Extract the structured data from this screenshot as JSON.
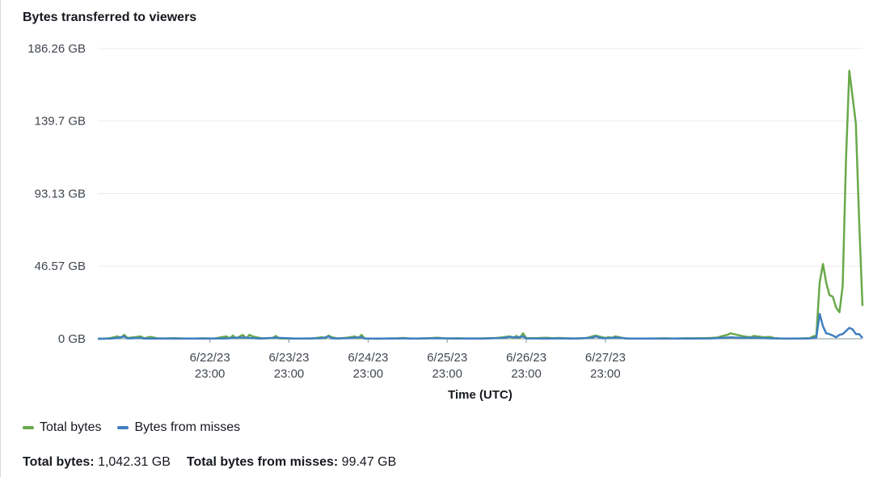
{
  "panel": {
    "title": "Bytes transferred to viewers"
  },
  "chart_data": {
    "type": "line",
    "title": "Bytes transferred to viewers",
    "xlabel": "Time (UTC)",
    "ylabel": "",
    "y_unit": "GB",
    "ylim": [
      0,
      186.26
    ],
    "y_ticks": [
      0,
      46.57,
      93.13,
      139.7,
      186.26
    ],
    "y_tick_labels": [
      "0 GB",
      "46.57 GB",
      "93.13 GB",
      "139.7 GB",
      "186.26 GB"
    ],
    "x_start": "2023-06-21T13:00",
    "x_end": "2023-06-28T13:00",
    "x_ticks": [
      "2023-06-22T23:00",
      "2023-06-23T23:00",
      "2023-06-24T23:00",
      "2023-06-25T23:00",
      "2023-06-26T23:00",
      "2023-06-27T23:00"
    ],
    "x_tick_labels": [
      [
        "6/22/23",
        "23:00"
      ],
      [
        "6/23/23",
        "23:00"
      ],
      [
        "6/24/23",
        "23:00"
      ],
      [
        "6/25/23",
        "23:00"
      ],
      [
        "6/26/23",
        "23:00"
      ],
      [
        "6/27/23",
        "23:00"
      ]
    ],
    "grid": true,
    "legend_position": "bottom-left",
    "series": [
      {
        "name": "Total bytes",
        "color": "#69a94a",
        "points": [
          [
            "2023-06-21T13:00",
            0
          ],
          [
            "2023-06-21T15:00",
            0
          ],
          [
            "2023-06-21T17:00",
            0.5
          ],
          [
            "2023-06-21T19:00",
            1.5
          ],
          [
            "2023-06-21T20:00",
            0.5
          ],
          [
            "2023-06-21T21:00",
            2.5
          ],
          [
            "2023-06-21T22:00",
            0.5
          ],
          [
            "2023-06-22T00:00",
            1
          ],
          [
            "2023-06-22T02:00",
            1.5
          ],
          [
            "2023-06-22T03:00",
            0.3
          ],
          [
            "2023-06-22T05:00",
            1.2
          ],
          [
            "2023-06-22T07:00",
            0.3
          ],
          [
            "2023-06-22T09:00",
            0.2
          ],
          [
            "2023-06-22T12:00",
            0.4
          ],
          [
            "2023-06-22T15:00",
            0.2
          ],
          [
            "2023-06-22T18:00",
            0.1
          ],
          [
            "2023-06-22T21:00",
            0.3
          ],
          [
            "2023-06-23T00:00",
            0.1
          ],
          [
            "2023-06-23T04:00",
            1.5
          ],
          [
            "2023-06-23T05:00",
            0.3
          ],
          [
            "2023-06-23T06:00",
            2
          ],
          [
            "2023-06-23T07:00",
            0.3
          ],
          [
            "2023-06-23T09:00",
            2.5
          ],
          [
            "2023-06-23T10:00",
            0.3
          ],
          [
            "2023-06-23T11:00",
            2.5
          ],
          [
            "2023-06-23T12:00",
            1.5
          ],
          [
            "2023-06-23T13:00",
            1
          ],
          [
            "2023-06-23T15:00",
            0.2
          ],
          [
            "2023-06-23T18:00",
            0.4
          ],
          [
            "2023-06-23T19:00",
            1.8
          ],
          [
            "2023-06-23T20:00",
            0.2
          ],
          [
            "2023-06-23T23:00",
            0.1
          ],
          [
            "2023-06-24T03:00",
            0.1
          ],
          [
            "2023-06-24T06:00",
            0.1
          ],
          [
            "2023-06-24T09:00",
            1
          ],
          [
            "2023-06-24T10:00",
            0.2
          ],
          [
            "2023-06-24T11:00",
            2
          ],
          [
            "2023-06-24T12:00",
            1
          ],
          [
            "2023-06-24T14:00",
            0.1
          ],
          [
            "2023-06-24T17:00",
            0.8
          ],
          [
            "2023-06-24T19:00",
            1.5
          ],
          [
            "2023-06-24T20:00",
            0.3
          ],
          [
            "2023-06-24T21:00",
            2.5
          ],
          [
            "2023-06-24T22:00",
            0.1
          ],
          [
            "2023-06-25T02:00",
            0
          ],
          [
            "2023-06-25T05:00",
            0.2
          ],
          [
            "2023-06-25T08:00",
            0.3
          ],
          [
            "2023-06-25T10:00",
            0.5
          ],
          [
            "2023-06-25T11:00",
            0.2
          ],
          [
            "2023-06-25T14:00",
            0.1
          ],
          [
            "2023-06-25T17:00",
            0.3
          ],
          [
            "2023-06-25T20:00",
            0.6
          ],
          [
            "2023-06-25T23:00",
            0.1
          ],
          [
            "2023-06-26T02:00",
            0.3
          ],
          [
            "2023-06-26T05:00",
            0.2
          ],
          [
            "2023-06-26T08:00",
            0.2
          ],
          [
            "2023-06-26T11:00",
            0.3
          ],
          [
            "2023-06-26T14:00",
            0.5
          ],
          [
            "2023-06-26T16:00",
            1
          ],
          [
            "2023-06-26T18:00",
            1.5
          ],
          [
            "2023-06-26T19:00",
            0.5
          ],
          [
            "2023-06-26T20:00",
            1.8
          ],
          [
            "2023-06-26T21:00",
            0.3
          ],
          [
            "2023-06-26T22:00",
            3.5
          ],
          [
            "2023-06-26T23:00",
            0.4
          ],
          [
            "2023-06-27T02:00",
            0.4
          ],
          [
            "2023-06-27T05:00",
            0.6
          ],
          [
            "2023-06-27T07:00",
            0.4
          ],
          [
            "2023-06-27T09:00",
            0.5
          ],
          [
            "2023-06-27T11:00",
            0.3
          ],
          [
            "2023-06-27T14:00",
            0.2
          ],
          [
            "2023-06-27T17:00",
            0.3
          ],
          [
            "2023-06-27T19:00",
            1.5
          ],
          [
            "2023-06-27T20:00",
            2
          ],
          [
            "2023-06-27T22:00",
            1
          ],
          [
            "2023-06-27T23:00",
            0.5
          ],
          [
            "2023-06-28T00:00",
            1
          ],
          [
            "2023-06-28T01:00",
            0.6
          ],
          [
            "2023-06-28T02:00",
            1.5
          ],
          [
            "2023-06-28T05:00",
            0.2
          ],
          [
            "2023-06-28T08:00",
            0.1
          ],
          [
            "2023-06-28T11:00",
            0.1
          ],
          [
            "2023-06-28T14:00",
            0.2
          ],
          [
            "2023-06-28T17:00",
            0.3
          ],
          [
            "2023-06-28T20:00",
            0.1
          ],
          [
            "2023-06-28T23:00",
            0.3
          ],
          [
            "2023-06-29T02:00",
            0.3
          ],
          [
            "2023-06-29T05:00",
            0.4
          ],
          [
            "2023-06-29T07:00",
            0.5
          ],
          [
            "2023-06-29T09:00",
            0.8
          ],
          [
            "2023-06-29T11:00",
            2
          ],
          [
            "2023-06-29T12:00",
            2.5
          ],
          [
            "2023-06-29T13:00",
            3.5
          ],
          [
            "2023-06-29T15:00",
            2.5
          ],
          [
            "2023-06-29T17:00",
            1.5
          ],
          [
            "2023-06-29T19:00",
            1
          ],
          [
            "2023-06-29T20:00",
            1.8
          ],
          [
            "2023-06-29T21:00",
            1.5
          ],
          [
            "2023-06-29T23:00",
            1
          ],
          [
            "2023-06-30T01:00",
            1.2
          ],
          [
            "2023-06-30T02:00",
            0.5
          ],
          [
            "2023-06-30T04:00",
            0.2
          ],
          [
            "2023-06-30T07:00",
            0.1
          ],
          [
            "2023-06-30T10:00",
            0.2
          ],
          [
            "2023-06-30T13:00",
            0.4
          ],
          [
            "2023-06-30T14:00",
            1.5
          ],
          [
            "2023-06-30T15:00",
            2
          ],
          [
            "2023-06-30T16:00",
            36
          ],
          [
            "2023-06-30T17:00",
            48
          ],
          [
            "2023-06-30T18:00",
            36
          ],
          [
            "2023-06-30T19:00",
            28
          ],
          [
            "2023-06-30T20:00",
            27
          ],
          [
            "2023-06-30T21:00",
            20
          ],
          [
            "2023-06-30T22:00",
            17
          ],
          [
            "2023-06-30T23:00",
            34
          ],
          [
            "2023-07-01T00:00",
            115
          ],
          [
            "2023-07-01T01:00",
            172
          ],
          [
            "2023-07-01T02:00",
            155
          ],
          [
            "2023-07-01T03:00",
            138
          ],
          [
            "2023-07-01T04:00",
            75
          ],
          [
            "2023-07-01T05:00",
            21
          ]
        ]
      },
      {
        "name": "Bytes from misses",
        "color": "#3f7fc0",
        "points": [
          [
            "2023-06-21T13:00",
            0
          ],
          [
            "2023-06-21T17:00",
            0.1
          ],
          [
            "2023-06-21T19:00",
            0.5
          ],
          [
            "2023-06-21T21:00",
            1.5
          ],
          [
            "2023-06-21T22:00",
            0.2
          ],
          [
            "2023-06-22T02:00",
            0.5
          ],
          [
            "2023-06-22T03:00",
            0.1
          ],
          [
            "2023-06-22T08:00",
            0.1
          ],
          [
            "2023-06-22T15:00",
            0.1
          ],
          [
            "2023-06-22T21:00",
            0.1
          ],
          [
            "2023-06-23T04:00",
            0.2
          ],
          [
            "2023-06-23T06:00",
            0.5
          ],
          [
            "2023-06-23T09:00",
            0.8
          ],
          [
            "2023-06-23T11:00",
            0.5
          ],
          [
            "2023-06-23T14:00",
            0.1
          ],
          [
            "2023-06-23T19:00",
            0.6
          ],
          [
            "2023-06-24T01:00",
            0.1
          ],
          [
            "2023-06-24T09:00",
            0.3
          ],
          [
            "2023-06-24T11:00",
            1.5
          ],
          [
            "2023-06-24T12:00",
            0.2
          ],
          [
            "2023-06-24T17:00",
            0.3
          ],
          [
            "2023-06-24T19:00",
            0.7
          ],
          [
            "2023-06-24T21:00",
            1
          ],
          [
            "2023-06-24T22:00",
            0.1
          ],
          [
            "2023-06-25T05:00",
            0.1
          ],
          [
            "2023-06-25T10:00",
            0.2
          ],
          [
            "2023-06-25T14:00",
            0.1
          ],
          [
            "2023-06-25T20:00",
            0.3
          ],
          [
            "2023-06-26T02:00",
            0.1
          ],
          [
            "2023-06-26T10:00",
            0.1
          ],
          [
            "2023-06-26T16:00",
            0.5
          ],
          [
            "2023-06-26T18:00",
            1.2
          ],
          [
            "2023-06-26T20:00",
            0.8
          ],
          [
            "2023-06-26T22:00",
            1.5
          ],
          [
            "2023-06-26T23:00",
            0.2
          ],
          [
            "2023-06-27T05:00",
            0.1
          ],
          [
            "2023-06-27T09:00",
            0.2
          ],
          [
            "2023-06-27T14:00",
            0.1
          ],
          [
            "2023-06-27T19:00",
            0.6
          ],
          [
            "2023-06-27T20:00",
            1.5
          ],
          [
            "2023-06-27T22:00",
            0.3
          ],
          [
            "2023-06-28T00:00",
            0.4
          ],
          [
            "2023-06-28T02:00",
            0.8
          ],
          [
            "2023-06-28T06:00",
            0.1
          ],
          [
            "2023-06-28T13:00",
            0.1
          ],
          [
            "2023-06-28T20:00",
            0.1
          ],
          [
            "2023-06-29T02:00",
            0.1
          ],
          [
            "2023-06-29T07:00",
            0.2
          ],
          [
            "2023-06-29T11:00",
            0.6
          ],
          [
            "2023-06-29T13:00",
            0.9
          ],
          [
            "2023-06-29T17:00",
            0.5
          ],
          [
            "2023-06-29T20:00",
            0.7
          ],
          [
            "2023-06-29T23:00",
            0.4
          ],
          [
            "2023-06-30T02:00",
            0.2
          ],
          [
            "2023-06-30T08:00",
            0.1
          ],
          [
            "2023-06-30T13:00",
            0.2
          ],
          [
            "2023-06-30T15:00",
            0.8
          ],
          [
            "2023-06-30T16:00",
            16
          ],
          [
            "2023-06-30T17:00",
            8
          ],
          [
            "2023-06-30T18:00",
            3.5
          ],
          [
            "2023-06-30T19:00",
            3
          ],
          [
            "2023-06-30T20:00",
            2
          ],
          [
            "2023-06-30T21:00",
            1
          ],
          [
            "2023-06-30T22:00",
            2.5
          ],
          [
            "2023-06-30T23:00",
            3
          ],
          [
            "2023-07-01T00:00",
            5
          ],
          [
            "2023-07-01T01:00",
            7
          ],
          [
            "2023-07-01T02:00",
            6
          ],
          [
            "2023-07-01T03:00",
            3
          ],
          [
            "2023-07-01T04:00",
            3
          ],
          [
            "2023-07-01T05:00",
            0.5
          ]
        ]
      }
    ]
  },
  "legend": {
    "items": [
      {
        "label": "Total bytes",
        "color": "#69a94a"
      },
      {
        "label": "Bytes from misses",
        "color": "#3f7fc0"
      }
    ]
  },
  "summary": {
    "total_label": "Total bytes:",
    "total_value": "1,042.31 GB",
    "misses_label": "Total bytes from misses:",
    "misses_value": "99.47 GB"
  }
}
